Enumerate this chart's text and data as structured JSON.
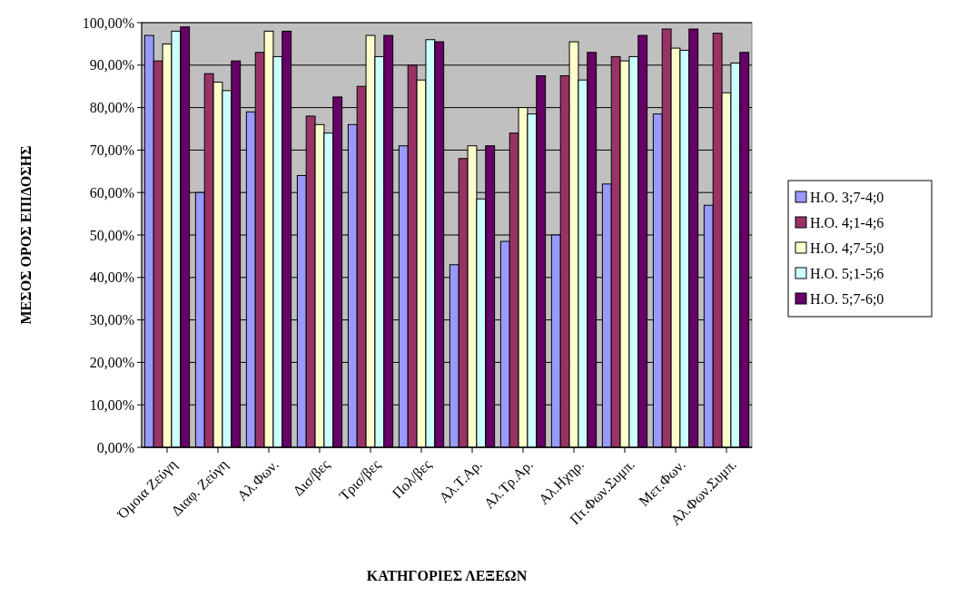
{
  "chart_data": {
    "type": "bar",
    "xlabel": "ΚΑΤΗΓΟΡΙΕΣ ΛΕΞΕΩΝ",
    "ylabel": "ΜΕΣΟΣ ΟΡΟΣ ΕΠΙΔΟΣΗΣ",
    "categories": [
      "Όμοια Ζεύγη",
      "Διαφ. Ζεύγη",
      "Αλ.Φων.",
      "Δισ/βες",
      "Τρισ/βες",
      "Πολ/βες",
      "Αλ.Τ.Αρ.",
      "Αλ.Τρ.Αρ.",
      "Αλ.Ηχηρ.",
      "Πτ.Φων.Συμπ.",
      "Μετ.Φων.",
      "Αλ.Φων.Συμπ."
    ],
    "series": [
      {
        "name": "Η.Ο. 3;7-4;0",
        "color": "#9999ff",
        "values": [
          97,
          60,
          79,
          64,
          76,
          71,
          43,
          48.5,
          50,
          62,
          78.5,
          57
        ]
      },
      {
        "name": "Η.Ο. 4;1-4;6",
        "color": "#993366",
        "values": [
          91,
          88,
          93,
          78,
          85,
          90,
          68,
          74,
          87.5,
          92,
          98.5,
          97.5
        ]
      },
      {
        "name": "Η.Ο. 4;7-5;0",
        "color": "#ffffcc",
        "values": [
          95,
          86,
          98,
          76,
          97,
          86.5,
          71,
          80,
          95.5,
          91,
          94,
          83.5
        ]
      },
      {
        "name": "Η.Ο. 5;1-5;6",
        "color": "#ccffff",
        "values": [
          98,
          84,
          92,
          74,
          92,
          96,
          58.5,
          78.5,
          86.5,
          92,
          93.5,
          90.5
        ]
      },
      {
        "name": "Η.Ο. 5;7-6;0",
        "color": "#660066",
        "values": [
          99,
          91,
          98,
          82.5,
          97,
          95.5,
          71,
          87.5,
          93,
          97,
          98.5,
          93
        ]
      }
    ],
    "ylim": [
      0,
      100
    ],
    "yticks": [
      {
        "value": 0,
        "label": "0,00%"
      },
      {
        "value": 10,
        "label": "10,00%"
      },
      {
        "value": 20,
        "label": "20,00%"
      },
      {
        "value": 30,
        "label": "30,00%"
      },
      {
        "value": 40,
        "label": "40,00%"
      },
      {
        "value": 50,
        "label": "50,00%"
      },
      {
        "value": 60,
        "label": "60,00%"
      },
      {
        "value": 70,
        "label": "70,00%"
      },
      {
        "value": 80,
        "label": "80,00%"
      },
      {
        "value": 90,
        "label": "90,00%"
      },
      {
        "value": 100,
        "label": "100,00%"
      }
    ],
    "grid": "y",
    "legend": "right"
  }
}
